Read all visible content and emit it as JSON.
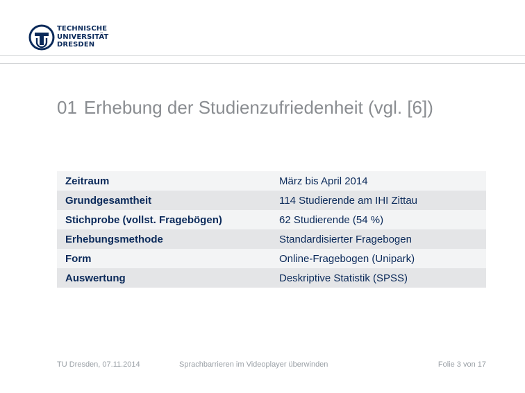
{
  "logo": {
    "line1": "TECHNISCHE",
    "line2": "UNIVERSITÄT",
    "line3": "DRESDEN",
    "color": "#0b2a5a"
  },
  "slide": {
    "number": "01",
    "title": "Erhebung der Studienzufriedenheit (vgl. [6])"
  },
  "table": {
    "rows": [
      {
        "key": "Zeitraum",
        "value": "März bis April 2014"
      },
      {
        "key": "Grundgesamtheit",
        "value": "114 Studierende am IHI Zittau"
      },
      {
        "key": "Stichprobe (vollst. Fragebögen)",
        "value": "62 Studierende (54 %)"
      },
      {
        "key": "Erhebungsmethode",
        "value": "Standardisierter Fragebogen"
      },
      {
        "key": "Form",
        "value": "Online-Fragebogen (Unipark)"
      },
      {
        "key": "Auswertung",
        "value": "Deskriptive Statistik (SPSS)"
      }
    ]
  },
  "footer": {
    "left": "TU Dresden, 07.11.2014",
    "middle": "Sprachbarrieren im Videoplayer überwinden",
    "right": "Folie 3 von 17"
  }
}
